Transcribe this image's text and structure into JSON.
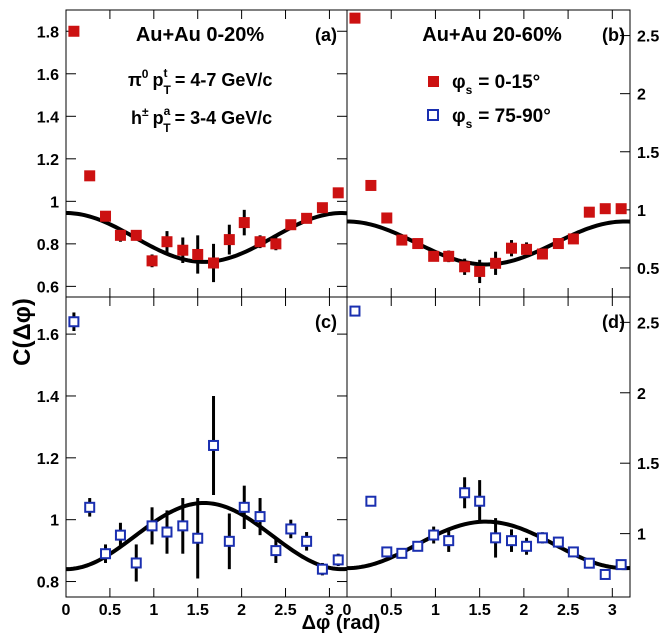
{
  "figure": {
    "ylabel": "C(Δφ)",
    "xlabel": "Δφ (rad)"
  },
  "annotations": {
    "pt_trigger_prefix": "π",
    "pt_trigger_sup": "0",
    "pt_trigger_p": "p",
    "pt_trigger_t": "t",
    "pt_trigger_T": "T",
    "pt_trigger_range": "= 4-7 GeV/c",
    "pt_assoc_prefix": "h",
    "pt_assoc_sup": "±",
    "pt_assoc_p": "p",
    "pt_assoc_a": "a",
    "pt_assoc_T": "T",
    "pt_assoc_range": "= 3-4 GeV/c"
  },
  "legend": {
    "entry1_phi": "φ",
    "entry1_sub": "s",
    "entry1_range": "= 0-15°",
    "entry2_phi": "φ",
    "entry2_sub": "s",
    "entry2_range": "= 75-90°"
  },
  "colors": {
    "in_plane": "#cc1111",
    "out_of_plane": "#1a2fb0",
    "curve": "#000000"
  },
  "chart_data": [
    {
      "panel": "(a)",
      "title": "Au+Au 0-20%",
      "type": "scatter",
      "marker": "filled-square",
      "series_legend": "φs = 0-15°",
      "xlim": [
        0,
        3.2
      ],
      "ylim": [
        0.55,
        1.9
      ],
      "yticks": [
        0.6,
        0.8,
        1,
        1.2,
        1.4,
        1.6,
        1.8
      ],
      "ytick_labels": [
        "0.6",
        "0.8",
        "1",
        "1.2",
        "1.4",
        "1.6",
        "1.8"
      ],
      "points": [
        {
          "x": 0.09,
          "y": 1.8,
          "err": 0.02
        },
        {
          "x": 0.27,
          "y": 1.12,
          "err": 0.02
        },
        {
          "x": 0.45,
          "y": 0.93,
          "err": 0.02
        },
        {
          "x": 0.62,
          "y": 0.84,
          "err": 0.03
        },
        {
          "x": 0.8,
          "y": 0.84,
          "err": 0.02
        },
        {
          "x": 0.98,
          "y": 0.72,
          "err": 0.03
        },
        {
          "x": 1.15,
          "y": 0.81,
          "err": 0.05
        },
        {
          "x": 1.33,
          "y": 0.77,
          "err": 0.06
        },
        {
          "x": 1.5,
          "y": 0.75,
          "err": 0.09
        },
        {
          "x": 1.68,
          "y": 0.71,
          "err": 0.09
        },
        {
          "x": 1.86,
          "y": 0.82,
          "err": 0.07
        },
        {
          "x": 2.03,
          "y": 0.9,
          "err": 0.06
        },
        {
          "x": 2.21,
          "y": 0.81,
          "err": 0.03
        },
        {
          "x": 2.39,
          "y": 0.8,
          "err": 0.03
        },
        {
          "x": 2.56,
          "y": 0.89,
          "err": 0.02
        },
        {
          "x": 2.74,
          "y": 0.92,
          "err": 0.02
        },
        {
          "x": 2.92,
          "y": 0.97,
          "err": 0.02
        },
        {
          "x": 3.1,
          "y": 1.04,
          "err": 0.02
        }
      ],
      "curve": {
        "type": "cosine",
        "center": 0.83,
        "amplitude": 0.115
      }
    },
    {
      "panel": "(b)",
      "title": "Au+Au 20-60%",
      "type": "scatter",
      "marker": "filled-square",
      "series_legend": "φs = 0-15°",
      "xlim": [
        0,
        3.2
      ],
      "ylim": [
        0.25,
        2.72
      ],
      "yticks": [
        0.5,
        1,
        1.5,
        2,
        2.5
      ],
      "ytick_labels": [
        "0.5",
        "1",
        "1.5",
        "2",
        "2.5"
      ],
      "points": [
        {
          "x": 0.09,
          "y": 2.65,
          "err": 0.03
        },
        {
          "x": 0.27,
          "y": 1.21,
          "err": 0.02
        },
        {
          "x": 0.45,
          "y": 0.93,
          "err": 0.02
        },
        {
          "x": 0.62,
          "y": 0.74,
          "err": 0.02
        },
        {
          "x": 0.8,
          "y": 0.71,
          "err": 0.02
        },
        {
          "x": 0.98,
          "y": 0.6,
          "err": 0.03
        },
        {
          "x": 1.15,
          "y": 0.6,
          "err": 0.05
        },
        {
          "x": 1.33,
          "y": 0.51,
          "err": 0.07
        },
        {
          "x": 1.5,
          "y": 0.47,
          "err": 0.1
        },
        {
          "x": 1.68,
          "y": 0.54,
          "err": 0.1
        },
        {
          "x": 1.86,
          "y": 0.67,
          "err": 0.07
        },
        {
          "x": 2.03,
          "y": 0.66,
          "err": 0.06
        },
        {
          "x": 2.21,
          "y": 0.62,
          "err": 0.03
        },
        {
          "x": 2.39,
          "y": 0.71,
          "err": 0.02
        },
        {
          "x": 2.56,
          "y": 0.75,
          "err": 0.02
        },
        {
          "x": 2.74,
          "y": 0.98,
          "err": 0.02
        },
        {
          "x": 2.92,
          "y": 1.01,
          "err": 0.02
        },
        {
          "x": 3.1,
          "y": 1.01,
          "err": 0.02
        }
      ],
      "curve": {
        "type": "cosine",
        "center": 0.715,
        "amplitude": 0.185
      }
    },
    {
      "panel": "(c)",
      "title": "",
      "type": "scatter",
      "marker": "open-square",
      "series_legend": "φs = 75-90°",
      "xlim": [
        0,
        3.2
      ],
      "ylim": [
        0.75,
        1.72
      ],
      "yticks": [
        0.8,
        1,
        1.2,
        1.4,
        1.6
      ],
      "ytick_labels": [
        "0.8",
        "1",
        "1.2",
        "1.4",
        "1.6"
      ],
      "points": [
        {
          "x": 0.09,
          "y": 1.64,
          "err": 0.03
        },
        {
          "x": 0.27,
          "y": 1.04,
          "err": 0.03
        },
        {
          "x": 0.45,
          "y": 0.89,
          "err": 0.03
        },
        {
          "x": 0.62,
          "y": 0.95,
          "err": 0.04
        },
        {
          "x": 0.8,
          "y": 0.86,
          "err": 0.06
        },
        {
          "x": 0.98,
          "y": 0.98,
          "err": 0.06
        },
        {
          "x": 1.15,
          "y": 0.96,
          "err": 0.07
        },
        {
          "x": 1.33,
          "y": 0.98,
          "err": 0.09
        },
        {
          "x": 1.5,
          "y": 0.94,
          "err": 0.13
        },
        {
          "x": 1.68,
          "y": 1.24,
          "err": 0.16
        },
        {
          "x": 1.86,
          "y": 0.93,
          "err": 0.09
        },
        {
          "x": 2.03,
          "y": 1.04,
          "err": 0.07
        },
        {
          "x": 2.21,
          "y": 1.01,
          "err": 0.06
        },
        {
          "x": 2.39,
          "y": 0.9,
          "err": 0.04
        },
        {
          "x": 2.56,
          "y": 0.97,
          "err": 0.03
        },
        {
          "x": 2.74,
          "y": 0.93,
          "err": 0.03
        },
        {
          "x": 2.92,
          "y": 0.84,
          "err": 0.02
        },
        {
          "x": 3.1,
          "y": 0.87,
          "err": 0.02
        }
      ],
      "curve": {
        "type": "cosine",
        "center": 0.947,
        "amplitude": -0.107
      }
    },
    {
      "panel": "(d)",
      "title": "",
      "type": "scatter",
      "marker": "open-square",
      "series_legend": "φs = 75-90°",
      "xlim": [
        0,
        3.2
      ],
      "ylim": [
        0.55,
        2.68
      ],
      "yticks": [
        1,
        1.5,
        2,
        2.5
      ],
      "ytick_labels": [
        "1",
        "1.5",
        "2",
        "2.5"
      ],
      "points": [
        {
          "x": 0.09,
          "y": 2.58,
          "err": 0.03
        },
        {
          "x": 0.27,
          "y": 1.23,
          "err": 0.03
        },
        {
          "x": 0.45,
          "y": 0.87,
          "err": 0.02
        },
        {
          "x": 0.62,
          "y": 0.86,
          "err": 0.03
        },
        {
          "x": 0.8,
          "y": 0.91,
          "err": 0.03
        },
        {
          "x": 0.98,
          "y": 0.99,
          "err": 0.06
        },
        {
          "x": 1.15,
          "y": 0.95,
          "err": 0.08
        },
        {
          "x": 1.33,
          "y": 1.29,
          "err": 0.11
        },
        {
          "x": 1.5,
          "y": 1.23,
          "err": 0.15
        },
        {
          "x": 1.68,
          "y": 0.97,
          "err": 0.14
        },
        {
          "x": 1.86,
          "y": 0.95,
          "err": 0.08
        },
        {
          "x": 2.03,
          "y": 0.91,
          "err": 0.06
        },
        {
          "x": 2.21,
          "y": 0.97,
          "err": 0.04
        },
        {
          "x": 2.39,
          "y": 0.94,
          "err": 0.03
        },
        {
          "x": 2.56,
          "y": 0.87,
          "err": 0.02
        },
        {
          "x": 2.74,
          "y": 0.79,
          "err": 0.02
        },
        {
          "x": 2.92,
          "y": 0.71,
          "err": 0.02
        },
        {
          "x": 3.1,
          "y": 0.78,
          "err": 0.02
        }
      ],
      "curve": {
        "type": "cosine",
        "center": 0.92,
        "amplitude": -0.165
      }
    }
  ],
  "x_axis": {
    "ticks": [
      0,
      0.5,
      1,
      1.5,
      2,
      2.5,
      3
    ],
    "tick_labels": [
      "0",
      "0.5",
      "1",
      "1.5",
      "2",
      "2.5",
      "3"
    ]
  }
}
